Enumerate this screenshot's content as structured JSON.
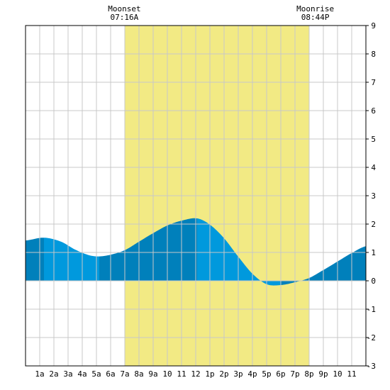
{
  "chart_data": {
    "type": "area",
    "title": "",
    "xlabel": "",
    "ylabel": "",
    "xlim": [
      0,
      24
    ],
    "ylim": [
      -3,
      9
    ],
    "y_ticks": [
      -3,
      -2,
      -1,
      0,
      1,
      2,
      3,
      4,
      5,
      6,
      7,
      8,
      9
    ],
    "x_tick_labels": [
      "1a",
      "2a",
      "3a",
      "4a",
      "5a",
      "6a",
      "7a",
      "8a",
      "9a",
      "10",
      "11",
      "12",
      "1p",
      "2p",
      "3p",
      "4p",
      "5p",
      "6p",
      "7p",
      "8p",
      "9p",
      "10",
      "11"
    ],
    "grid": true,
    "daylight": {
      "start": 7.0,
      "end": 20.0
    },
    "moon_events": [
      {
        "title": "Moonset",
        "time": "07:16A",
        "hour": 7.27
      },
      {
        "title": "Moonrise",
        "time": "08:44P",
        "hour": 20.73
      }
    ],
    "series": [
      {
        "x": [
          0,
          1.3,
          2.5,
          3.5,
          4.5,
          5.2,
          6.0,
          7.0,
          8.0,
          9.0,
          10.0,
          11.0,
          12.1,
          13.0,
          14.0,
          15.0,
          16.0,
          17.0,
          18.0,
          19.0,
          20.0,
          21.0,
          22.0,
          23.0,
          24.0
        ],
        "values": [
          1.42,
          1.52,
          1.38,
          1.1,
          0.9,
          0.86,
          0.92,
          1.08,
          1.38,
          1.68,
          1.95,
          2.12,
          2.2,
          1.98,
          1.5,
          0.85,
          0.25,
          -0.12,
          -0.15,
          -0.05,
          0.1,
          0.38,
          0.68,
          0.98,
          1.22
        ]
      }
    ],
    "tide_events": [
      {
        "type": "high",
        "hour": 1.3,
        "height": 1.52
      },
      {
        "type": "low",
        "hour": 5.2,
        "height": 0.86
      },
      {
        "type": "high",
        "hour": 12.1,
        "height": 2.2
      },
      {
        "type": "low",
        "hour": 18.0,
        "height": -0.15
      }
    ],
    "colors": {
      "daylight": "#f2ea84",
      "fill_light": "#0099dd",
      "fill_dark": "#0080bb",
      "grid": "#c8c8c8",
      "axis": "#000000"
    }
  }
}
